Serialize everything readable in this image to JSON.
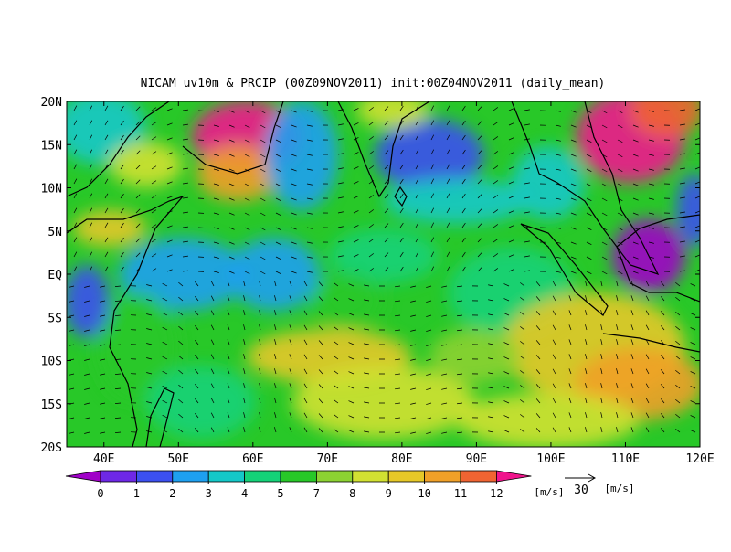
{
  "map": {
    "title": "NICAM uv10m & PRCIP (00Z09NOV2011) init:00Z04NOV2011 (daily_mean)",
    "xlim": [
      35,
      120
    ],
    "ylim": [
      -20,
      20
    ],
    "xticks": [
      {
        "value": 40,
        "label": "40E"
      },
      {
        "value": 50,
        "label": "50E"
      },
      {
        "value": 60,
        "label": "60E"
      },
      {
        "value": 70,
        "label": "70E"
      },
      {
        "value": 80,
        "label": "80E"
      },
      {
        "value": 90,
        "label": "90E"
      },
      {
        "value": 100,
        "label": "100E"
      },
      {
        "value": 110,
        "label": "110E"
      },
      {
        "value": 120,
        "label": "120E"
      }
    ],
    "yticks": [
      {
        "value": 20,
        "label": "20N"
      },
      {
        "value": 15,
        "label": "15N"
      },
      {
        "value": 10,
        "label": "10N"
      },
      {
        "value": 5,
        "label": "5N"
      },
      {
        "value": 0,
        "label": "EQ"
      },
      {
        "value": -5,
        "label": "5S"
      },
      {
        "value": -10,
        "label": "10S"
      },
      {
        "value": -15,
        "label": "15S"
      },
      {
        "value": -20,
        "label": "20S"
      }
    ],
    "colorbar": {
      "levels": [
        0,
        1,
        2,
        3,
        4,
        5,
        7,
        8,
        9,
        10,
        11,
        12
      ],
      "colors": [
        "#a000c8",
        "#6e28e6",
        "#3c50f0",
        "#1ea0f0",
        "#14c8c8",
        "#14d278",
        "#28c828",
        "#8cd232",
        "#d2e132",
        "#e6c828",
        "#f0a028",
        "#f06432",
        "#f0148c"
      ],
      "units": "[m/s]"
    },
    "vector_ref": {
      "value": 30,
      "units": "[m/s]"
    }
  }
}
